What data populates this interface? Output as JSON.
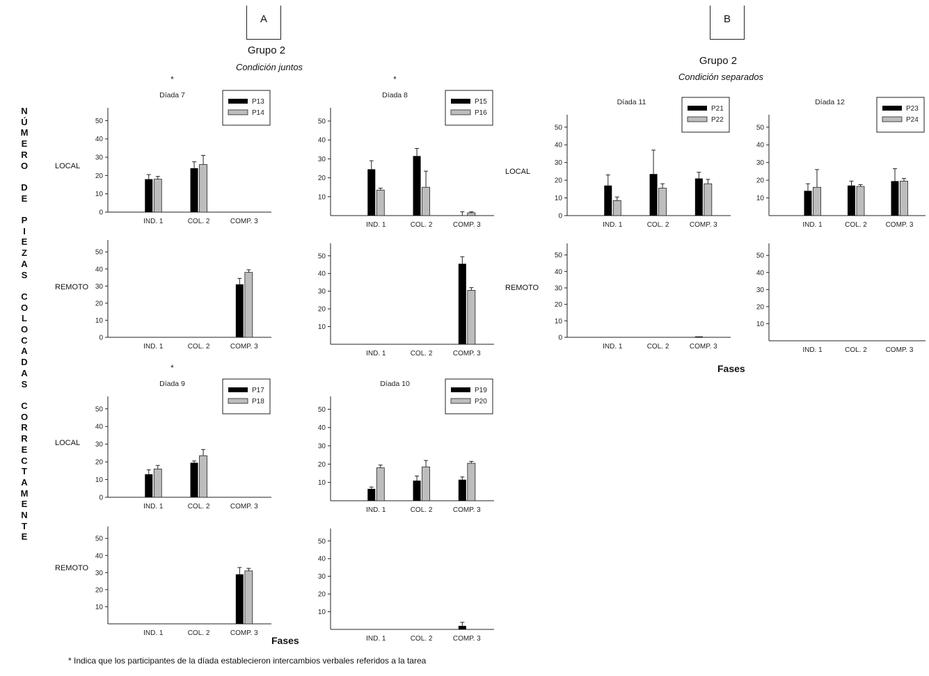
{
  "panel_a": {
    "box_label": "A",
    "group": "Grupo 2",
    "condition": "Condición juntos"
  },
  "panel_b": {
    "box_label": "B",
    "group": "Grupo 2",
    "condition": "Condición separados"
  },
  "y_axis_label": "NÚMERO DE PIEZAS COLOCADAS CORRECTAMENTE",
  "row_labels": {
    "local": "LOCAL",
    "remoto": "REMOTO"
  },
  "x_axis_title": "Fases",
  "footnote": "* Indica que los participantes de la díada establecieron intercambios verbales referidos a la tarea",
  "colors": {
    "series_1": "#000000",
    "series_2": "#bdbdbd"
  },
  "chart_data": [
    {
      "id": "d7-local",
      "type": "bar",
      "title": "Díada 7",
      "star": "*",
      "categories": [
        "IND. 1",
        "COL. 2",
        "COMP. 3"
      ],
      "yticks": [
        "0",
        "10",
        "20",
        "30",
        "40",
        "50"
      ],
      "ylim": [
        0,
        57
      ],
      "series": [
        {
          "name": "P13",
          "values": [
            18,
            24,
            0
          ],
          "errors": [
            2.5,
            3.5,
            0
          ]
        },
        {
          "name": "P14",
          "values": [
            18,
            26,
            0
          ],
          "errors": [
            1.5,
            5,
            0
          ]
        }
      ]
    },
    {
      "id": "d7-remoto",
      "type": "bar",
      "title": "",
      "categories": [
        "IND. 1",
        "COL. 2",
        "COMP. 3"
      ],
      "yticks": [
        "0",
        "10",
        "20",
        "30",
        "40",
        "50"
      ],
      "ylim": [
        0,
        57
      ],
      "series": [
        {
          "name": "P13",
          "values": [
            0,
            0,
            31
          ],
          "errors": [
            0,
            0,
            3.5
          ]
        },
        {
          "name": "P14",
          "values": [
            0,
            0,
            38
          ],
          "errors": [
            0,
            0,
            1.5
          ]
        }
      ]
    },
    {
      "id": "d8-local",
      "type": "bar",
      "title": "Díada 8",
      "star": "*",
      "categories": [
        "IND. 1",
        "COL. 2",
        "COMP. 3"
      ],
      "yticks": [
        "10",
        "20",
        "30",
        "40",
        "50"
      ],
      "ylim": [
        0,
        57
      ],
      "series": [
        {
          "name": "P15",
          "values": [
            24.5,
            31.5,
            0
          ],
          "errors": [
            4.5,
            4,
            2
          ]
        },
        {
          "name": "P16",
          "values": [
            13.5,
            15,
            1.5
          ],
          "errors": [
            1,
            8.5,
            0.5
          ]
        }
      ]
    },
    {
      "id": "d8-remoto",
      "type": "bar",
      "title": "",
      "categories": [
        "IND. 1",
        "COL. 2",
        "COMP. 3"
      ],
      "yticks": [
        "10",
        "20",
        "30",
        "40",
        "50"
      ],
      "ylim": [
        0,
        57
      ],
      "series": [
        {
          "name": "P15",
          "values": [
            0,
            0,
            45.5
          ],
          "errors": [
            0,
            0,
            4
          ]
        },
        {
          "name": "P16",
          "values": [
            0,
            0,
            30.5
          ],
          "errors": [
            0,
            0,
            1.5
          ]
        }
      ]
    },
    {
      "id": "d9-local",
      "type": "bar",
      "title": "Díada 9",
      "star": "*",
      "categories": [
        "IND. 1",
        "COL. 2",
        "COMP. 3"
      ],
      "yticks": [
        "0",
        "10",
        "20",
        "30",
        "40",
        "50"
      ],
      "ylim": [
        0,
        57
      ],
      "series": [
        {
          "name": "P17",
          "values": [
            13,
            19.5,
            0
          ],
          "errors": [
            2.5,
            1,
            0
          ]
        },
        {
          "name": "P18",
          "values": [
            16,
            23.5,
            0
          ],
          "errors": [
            2,
            3.5,
            0
          ]
        }
      ]
    },
    {
      "id": "d9-remoto",
      "type": "bar",
      "title": "",
      "categories": [
        "IND. 1",
        "COL. 2",
        "COMP. 3"
      ],
      "yticks": [
        "10",
        "20",
        "30",
        "40",
        "50"
      ],
      "ylim": [
        0,
        57
      ],
      "series": [
        {
          "name": "P17",
          "values": [
            0,
            0,
            29
          ],
          "errors": [
            0,
            0,
            4
          ]
        },
        {
          "name": "P18",
          "values": [
            0,
            0,
            31
          ],
          "errors": [
            0,
            0,
            1.5
          ]
        }
      ]
    },
    {
      "id": "d10-local",
      "type": "bar",
      "title": "Díada 10",
      "categories": [
        "IND. 1",
        "COL. 2",
        "COMP. 3"
      ],
      "yticks": [
        "10",
        "20",
        "30",
        "40",
        "50"
      ],
      "ylim": [
        0,
        57
      ],
      "series": [
        {
          "name": "P19",
          "values": [
            6.5,
            11,
            11.5
          ],
          "errors": [
            1,
            2.5,
            1.5
          ]
        },
        {
          "name": "P20",
          "values": [
            18,
            18.5,
            20.5
          ],
          "errors": [
            1.5,
            3.5,
            1
          ]
        }
      ]
    },
    {
      "id": "d10-remoto",
      "type": "bar",
      "title": "",
      "categories": [
        "IND. 1",
        "COL. 2",
        "COMP. 3"
      ],
      "yticks": [
        "10",
        "20",
        "30",
        "40",
        "50"
      ],
      "ylim": [
        0,
        57
      ],
      "series": [
        {
          "name": "P19",
          "values": [
            0,
            0,
            2
          ],
          "errors": [
            0,
            0,
            2
          ]
        },
        {
          "name": "P20",
          "values": [
            0,
            0,
            0
          ],
          "errors": [
            0,
            0,
            0
          ]
        }
      ]
    },
    {
      "id": "d11-local",
      "type": "bar",
      "title": "Díada 11",
      "categories": [
        "IND. 1",
        "COL. 2",
        "COMP. 3"
      ],
      "yticks": [
        "0",
        "10",
        "20",
        "30",
        "40",
        "50"
      ],
      "ylim": [
        0,
        57
      ],
      "series": [
        {
          "name": "P21",
          "values": [
            17,
            23.5,
            21
          ],
          "errors": [
            6,
            13.5,
            3.5
          ]
        },
        {
          "name": "P22",
          "values": [
            8.5,
            15.5,
            18
          ],
          "errors": [
            2,
            2.5,
            2.5
          ]
        }
      ]
    },
    {
      "id": "d11-remoto",
      "type": "bar",
      "title": "",
      "categories": [
        "IND. 1",
        "COL. 2",
        "COMP. 3"
      ],
      "yticks": [
        "0",
        "10",
        "20",
        "30",
        "40",
        "50"
      ],
      "ylim": [
        0,
        57
      ],
      "series": [
        {
          "name": "P21",
          "values": [
            0,
            0,
            0.5
          ],
          "errors": [
            0,
            0,
            0
          ]
        },
        {
          "name": "P22",
          "values": [
            0,
            0,
            0
          ],
          "errors": [
            0,
            0,
            0
          ]
        }
      ]
    },
    {
      "id": "d12-local",
      "type": "bar",
      "title": "Díada 12",
      "categories": [
        "IND. 1",
        "COL. 2",
        "COMP. 3"
      ],
      "yticks": [
        "10",
        "20",
        "30",
        "40",
        "50"
      ],
      "ylim": [
        0,
        57
      ],
      "series": [
        {
          "name": "P23",
          "values": [
            14,
            17,
            19.5
          ],
          "errors": [
            4,
            2.5,
            7
          ]
        },
        {
          "name": "P24",
          "values": [
            16,
            16.5,
            19.5
          ],
          "errors": [
            10,
            1,
            1.5
          ]
        }
      ]
    },
    {
      "id": "d12-remoto",
      "type": "bar",
      "title": "",
      "categories": [
        "IND. 1",
        "COL. 2",
        "COMP. 3"
      ],
      "yticks": [
        "10",
        "20",
        "30",
        "40",
        "50"
      ],
      "ylim": [
        0,
        57
      ],
      "series": [
        {
          "name": "P23",
          "values": [
            0,
            0,
            0
          ],
          "errors": [
            0,
            0,
            0
          ]
        },
        {
          "name": "P24",
          "values": [
            0,
            0,
            0
          ],
          "errors": [
            0,
            0,
            0
          ]
        }
      ]
    }
  ]
}
